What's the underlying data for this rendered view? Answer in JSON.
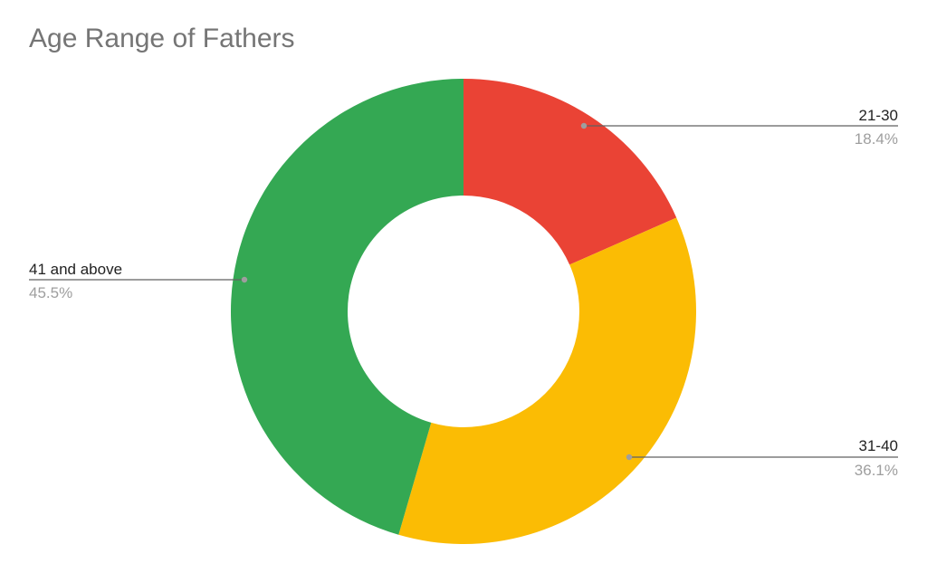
{
  "chart_data": {
    "type": "pie",
    "donut": true,
    "title": "Age Range of Fathers",
    "slices": [
      {
        "label": "21-30",
        "value": 18.4,
        "value_label": "18.4%",
        "color": "#ea4335"
      },
      {
        "label": "31-40",
        "value": 36.1,
        "value_label": "36.1%",
        "color": "#fbbc04"
      },
      {
        "label": "41 and above",
        "value": 45.5,
        "value_label": "45.5%",
        "color": "#34a853"
      }
    ],
    "legend": "labeled-leader-lines"
  }
}
